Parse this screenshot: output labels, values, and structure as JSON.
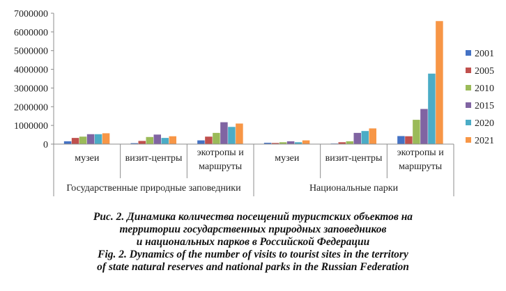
{
  "chart_data": {
    "type": "bar",
    "categories": [
      "музеи",
      "визит-центры",
      "экотропы и маршруты",
      "музеи",
      "визит-центры",
      "экотропы и маршруты"
    ],
    "category_lines": [
      [
        "музеи"
      ],
      [
        "визит-центры"
      ],
      [
        "экотропы и",
        "маршруты"
      ],
      [
        "музеи"
      ],
      [
        "визит-центры"
      ],
      [
        "экотропы и",
        "маршруты"
      ]
    ],
    "groups": [
      "Государственные  природные заповедники",
      "Национальные парки"
    ],
    "series": [
      {
        "name": "2001",
        "color": "#4472c4",
        "values": [
          150000,
          50000,
          200000,
          70000,
          30000,
          430000
        ]
      },
      {
        "name": "2005",
        "color": "#c0504d",
        "values": [
          330000,
          170000,
          400000,
          60000,
          100000,
          420000
        ]
      },
      {
        "name": "2010",
        "color": "#9bbb59",
        "values": [
          400000,
          380000,
          600000,
          100000,
          150000,
          1300000
        ]
      },
      {
        "name": "2015",
        "color": "#8064a2",
        "values": [
          530000,
          510000,
          1170000,
          150000,
          600000,
          1880000
        ]
      },
      {
        "name": "2020",
        "color": "#4bacc6",
        "values": [
          530000,
          330000,
          920000,
          100000,
          700000,
          3770000
        ]
      },
      {
        "name": "2021",
        "color": "#f79646",
        "values": [
          580000,
          420000,
          1100000,
          200000,
          840000,
          6580000
        ]
      }
    ],
    "ylim": [
      0,
      7000000
    ],
    "yticks": [
      "0",
      "1000000",
      "2000000",
      "3000000",
      "4000000",
      "5000000",
      "6000000",
      "7000000"
    ],
    "legend": "right",
    "grid": false
  },
  "caption": {
    "ru_line1": "Рис. 2. Динамика количества посещений туристских объектов на",
    "ru_line2": "территории государственных природных заповедников",
    "ru_line3": "и национальных парков в Российской Федерации",
    "en_line1": "Fig. 2. Dynamics of the number of visits to tourist sites in the territory",
    "en_line2": "of state natural reserves and national parks in the Russian Federation"
  }
}
